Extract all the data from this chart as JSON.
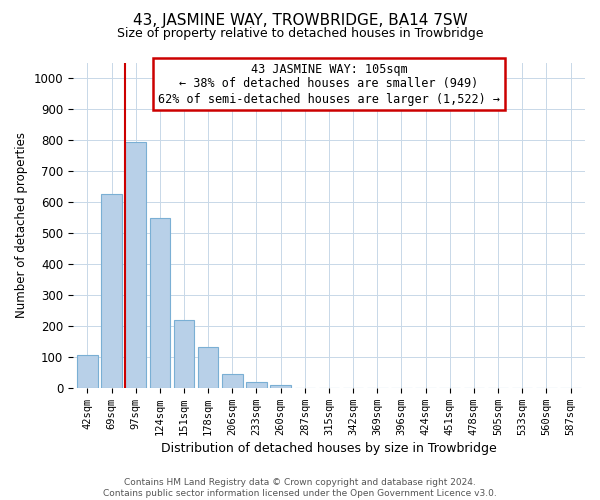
{
  "title": "43, JASMINE WAY, TROWBRIDGE, BA14 7SW",
  "subtitle": "Size of property relative to detached houses in Trowbridge",
  "xlabel": "Distribution of detached houses by size in Trowbridge",
  "ylabel": "Number of detached properties",
  "bar_labels": [
    "42sqm",
    "69sqm",
    "97sqm",
    "124sqm",
    "151sqm",
    "178sqm",
    "206sqm",
    "233sqm",
    "260sqm",
    "287sqm",
    "315sqm",
    "342sqm",
    "369sqm",
    "396sqm",
    "424sqm",
    "451sqm",
    "478sqm",
    "505sqm",
    "533sqm",
    "560sqm",
    "587sqm"
  ],
  "bar_values": [
    107,
    625,
    795,
    547,
    218,
    133,
    44,
    18,
    10,
    0,
    0,
    0,
    0,
    0,
    0,
    0,
    0,
    0,
    0,
    0,
    0
  ],
  "bar_color": "#b8d0e8",
  "bar_edge_color": "#7aafd4",
  "vline_color": "#cc0000",
  "ylim": [
    0,
    1050
  ],
  "yticks": [
    0,
    100,
    200,
    300,
    400,
    500,
    600,
    700,
    800,
    900,
    1000
  ],
  "annotation_line1": "43 JASMINE WAY: 105sqm",
  "annotation_line2": "← 38% of detached houses are smaller (949)",
  "annotation_line3": "62% of semi-detached houses are larger (1,522) →",
  "footer_line1": "Contains HM Land Registry data © Crown copyright and database right 2024.",
  "footer_line2": "Contains public sector information licensed under the Open Government Licence v3.0.",
  "bg_color": "#ffffff",
  "grid_color": "#c8d8e8"
}
